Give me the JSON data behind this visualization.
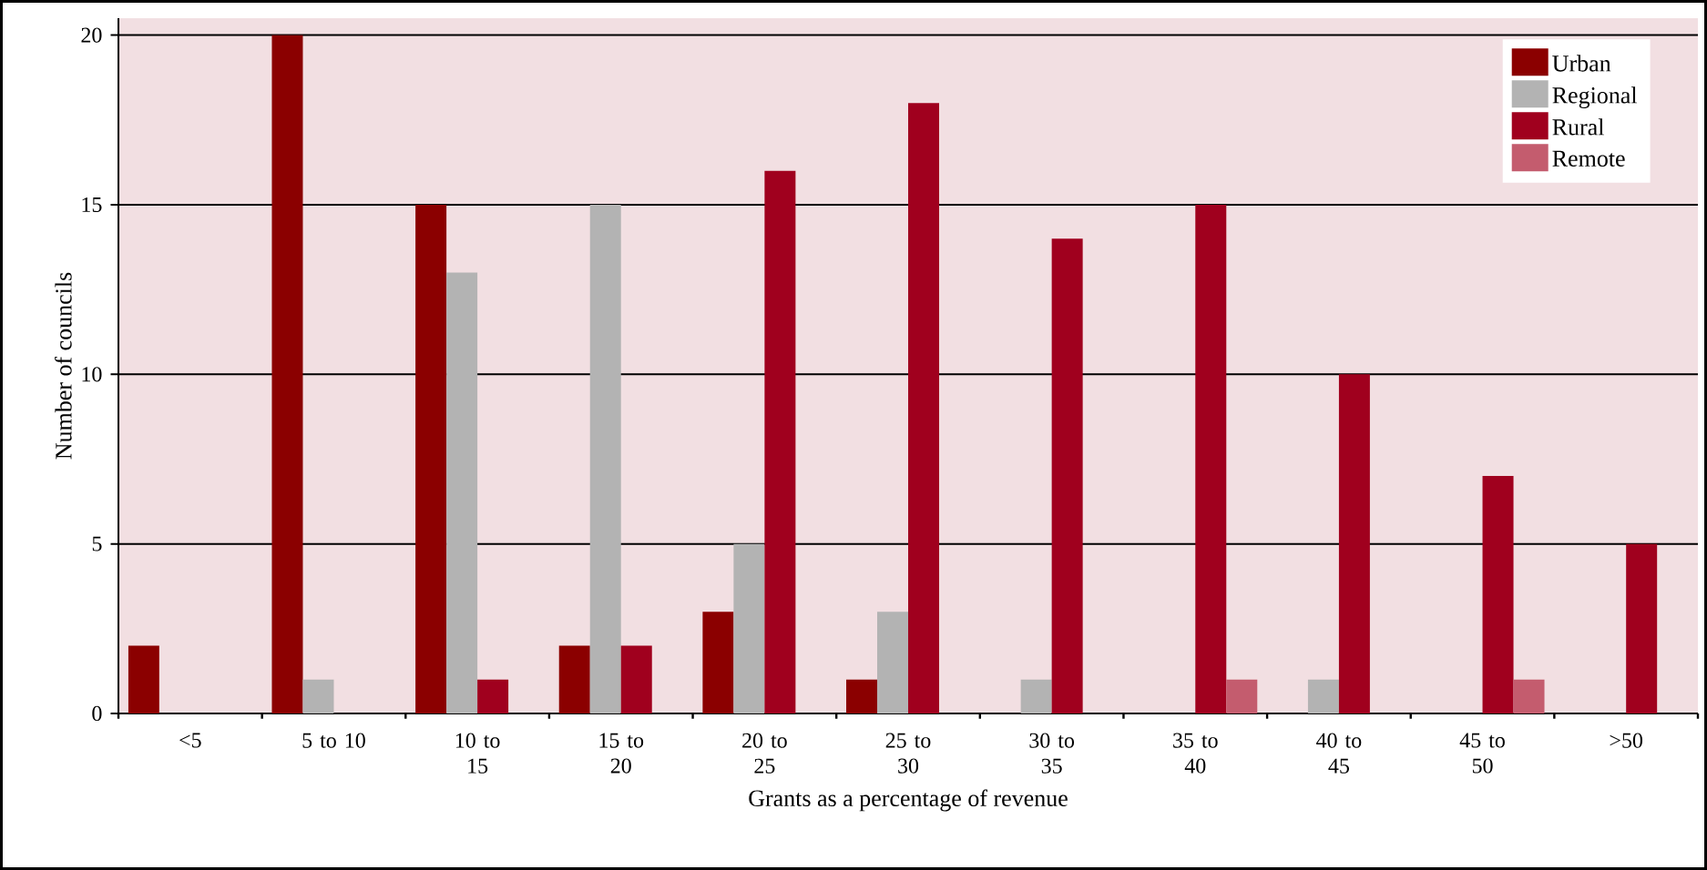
{
  "chart_data": {
    "type": "bar",
    "xlabel": "Grants as a percentage of revenue",
    "ylabel": "Number of councils",
    "categories": [
      "<5",
      "5 to 10",
      "10 to 15",
      "15 to 20",
      "20 to 25",
      "25 to 30",
      "30 to 35",
      "35 to 40",
      "40 to 45",
      "45 to 50",
      ">50"
    ],
    "series": [
      {
        "name": "Urban",
        "color": "#8b0000",
        "values": [
          2,
          20,
          15,
          2,
          3,
          1,
          null,
          null,
          null,
          null,
          null
        ]
      },
      {
        "name": "Regional",
        "color": "#b3b3b3",
        "values": [
          null,
          1,
          13,
          15,
          5,
          3,
          1,
          null,
          1,
          null,
          null
        ]
      },
      {
        "name": "Rural",
        "color": "#a0001e",
        "values": [
          null,
          null,
          1,
          2,
          16,
          18,
          14,
          15,
          10,
          7,
          5
        ]
      },
      {
        "name": "Remote",
        "color": "#c45c6e",
        "values": [
          null,
          null,
          null,
          null,
          null,
          null,
          null,
          1,
          null,
          1,
          null
        ]
      }
    ],
    "ylim": [
      0,
      20.5
    ],
    "yticks": [
      0,
      5,
      10,
      15,
      20
    ],
    "grid": "y",
    "legend": "top right"
  }
}
